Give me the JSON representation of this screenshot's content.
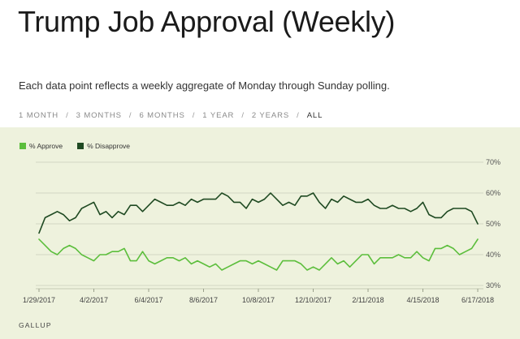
{
  "header": {
    "title": "Trump Job Approval (Weekly)",
    "subtitle": "Each data point reflects a weekly aggregate of Monday through Sunday polling."
  },
  "range_tabs": [
    "1 MONTH",
    "3 MONTHS",
    "6 MONTHS",
    "1 YEAR",
    "2 YEARS",
    "ALL"
  ],
  "active_tab": "ALL",
  "source": "GALLUP",
  "colors": {
    "panel_bg": "#eef2dd",
    "approve": "#5cbe3c",
    "disapprove": "#1f4a22",
    "grid": "#d2d6c2"
  },
  "chart_data": {
    "type": "line",
    "title": "Trump Job Approval (Weekly)",
    "xlabel": "",
    "ylabel": "",
    "ylim": [
      30,
      70
    ],
    "yticks": [
      "70%",
      "60%",
      "50%",
      "40%",
      "30%"
    ],
    "ytick_values": [
      70,
      60,
      50,
      40,
      30
    ],
    "xtick_labels": [
      "1/29/2017",
      "4/2/2017",
      "6/4/2017",
      "8/6/2017",
      "10/8/2017",
      "12/10/2017",
      "2/11/2018",
      "4/15/2018",
      "6/17/2018"
    ],
    "xtick_week_index": [
      0,
      9,
      18,
      27,
      36,
      45,
      54,
      63,
      72
    ],
    "grid": true,
    "legend": [
      "% Approve",
      "% Disapprove"
    ],
    "series": [
      {
        "name": "% Approve",
        "values": [
          45,
          43,
          41,
          40,
          42,
          43,
          42,
          40,
          39,
          38,
          40,
          40,
          41,
          41,
          42,
          38,
          38,
          41,
          38,
          37,
          38,
          39,
          39,
          38,
          39,
          37,
          38,
          37,
          36,
          37,
          35,
          36,
          37,
          38,
          38,
          37,
          38,
          37,
          36,
          35,
          38,
          38,
          38,
          37,
          35,
          36,
          35,
          37,
          39,
          37,
          38,
          36,
          38,
          40,
          40,
          37,
          39,
          39,
          39,
          40,
          39,
          39,
          41,
          39,
          38,
          42,
          42,
          43,
          42,
          40,
          41,
          42,
          45
        ]
      },
      {
        "name": "% Disapprove",
        "values": [
          47,
          52,
          53,
          54,
          53,
          51,
          52,
          55,
          56,
          57,
          53,
          54,
          52,
          54,
          53,
          56,
          56,
          54,
          56,
          58,
          57,
          56,
          56,
          57,
          56,
          58,
          57,
          58,
          58,
          58,
          60,
          59,
          57,
          57,
          55,
          58,
          57,
          58,
          60,
          58,
          56,
          57,
          56,
          59,
          59,
          60,
          57,
          55,
          58,
          57,
          59,
          58,
          57,
          57,
          58,
          56,
          55,
          55,
          56,
          55,
          55,
          54,
          55,
          57,
          53,
          52,
          52,
          54,
          55,
          55,
          55,
          54,
          50
        ]
      }
    ]
  }
}
